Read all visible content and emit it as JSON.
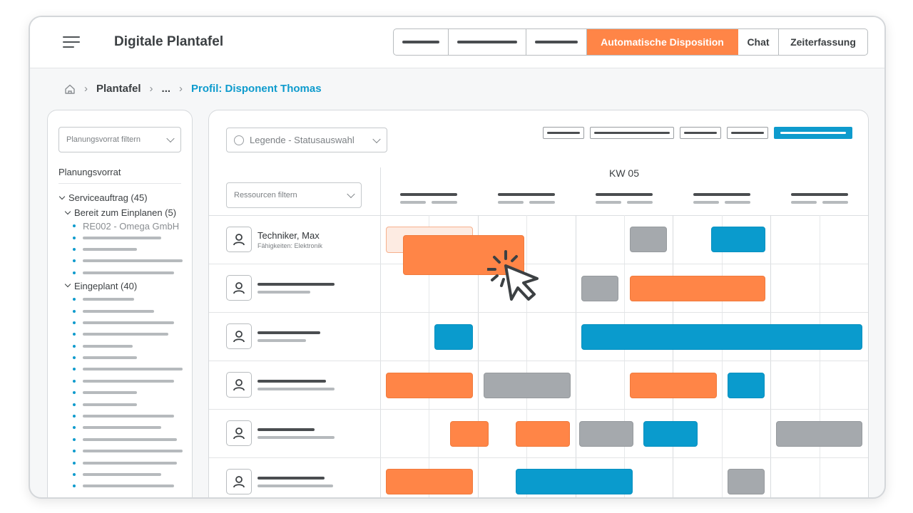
{
  "app": {
    "title": "Digitale Plantafel"
  },
  "nav": {
    "active_label": "Automatische Disposition",
    "chat_label": "Chat",
    "time_label": "Zeiterfassung"
  },
  "breadcrumb": {
    "plantafel": "Plantafel",
    "ellipsis": "...",
    "current": "Profil: Disponent Thomas"
  },
  "sidebar": {
    "filter_placeholder": "Planungsvorrat filtern",
    "heading": "Planungsvorrat",
    "group_service": "Serviceauftrag (45)",
    "group_ready": "Bereit zum Einplanen (5)",
    "first_item": "RE002 - Omega GmbH",
    "group_planned": "Eingeplant (40)"
  },
  "board": {
    "legend_label": "Legende - Statusauswahl",
    "resource_filter_placeholder": "Ressourcen filtern",
    "week_label": "KW 05"
  },
  "resources": [
    {
      "name": "Techniker, Max",
      "skills": "Fähigkeiten: Elektronik"
    }
  ],
  "colors": {
    "accent_orange": "#ff8547",
    "accent_blue": "#0a9bcd",
    "neutral_grey": "#a5a9ad"
  },
  "icons": [
    "menu-icon",
    "home-icon",
    "chevron-right-icon",
    "chevron-down-icon",
    "check-circle-icon",
    "user-icon",
    "pointer-click-icon"
  ]
}
